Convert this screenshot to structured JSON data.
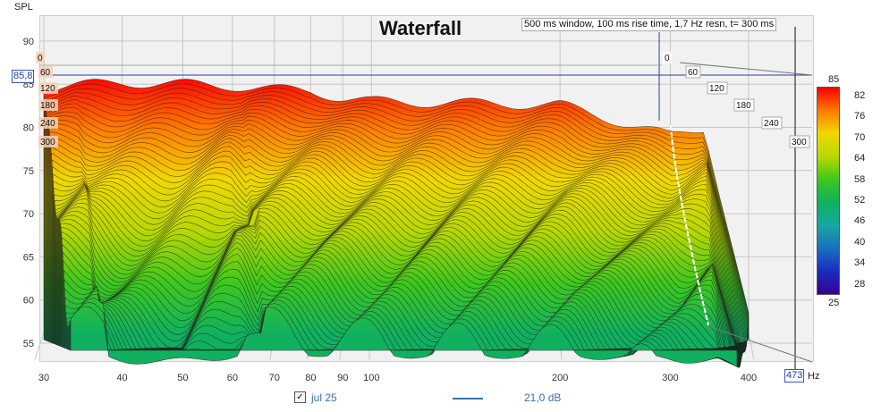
{
  "chart_data": {
    "type": "waterfall",
    "title": "Waterfall",
    "subtitle": "500 ms window, 100 ms rise time,  1,7 Hz resn, t= 300 ms",
    "ylabel": "SPL",
    "xunit": "Hz",
    "ylim": [
      53,
      92
    ],
    "xlim": [
      30,
      473
    ],
    "x_log": true,
    "yticks": [
      55,
      60,
      65,
      70,
      75,
      80,
      85,
      90
    ],
    "xticks": [
      30,
      40,
      50,
      60,
      70,
      80,
      90,
      100,
      200,
      300,
      400
    ],
    "cursor_x": "473",
    "cursor_y": "85,8",
    "time_labels": [
      "0",
      "60",
      "120",
      "180",
      "240",
      "300"
    ],
    "colorbar": {
      "top_label": "85",
      "bottom_label": "25",
      "ticks": [
        "82",
        "76",
        "70",
        "64",
        "58",
        "52",
        "46",
        "40",
        "34",
        "28"
      ],
      "colors": [
        "#ff0000",
        "#ff7a00",
        "#f0d800",
        "#b8d800",
        "#3ec81e",
        "#10b060",
        "#18a8a0",
        "#1a70c0",
        "#1a2cc0",
        "#380090"
      ]
    },
    "slices": 60,
    "front_trace_db_at": [
      {
        "f": 30,
        "db": 84.6
      },
      {
        "f": 40,
        "db": 85.2
      },
      {
        "f": 50,
        "db": 85.0
      },
      {
        "f": 60,
        "db": 84.8
      },
      {
        "f": 70,
        "db": 84.4
      },
      {
        "f": 80,
        "db": 84.2
      },
      {
        "f": 90,
        "db": 83.4
      },
      {
        "f": 100,
        "db": 83.0
      },
      {
        "f": 200,
        "db": 82.6
      },
      {
        "f": 300,
        "db": 79.0
      },
      {
        "f": 340,
        "db": 80.0
      },
      {
        "f": 400,
        "db": 58.0
      }
    ]
  },
  "legend": {
    "checkbox_checked": true,
    "series_name": "jul 25",
    "series_color": "#3a6fb0",
    "smoothing_label": "21,0 dB"
  }
}
